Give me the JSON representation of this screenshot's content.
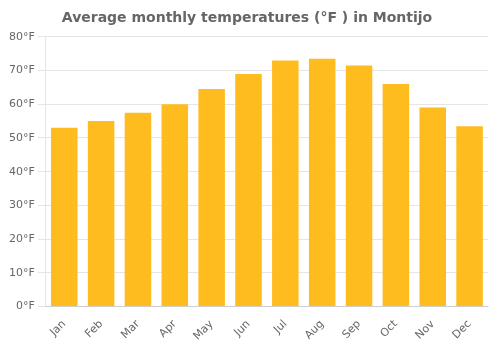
{
  "chart_data": {
    "type": "bar",
    "title": "Average monthly temperatures (°F ) in Montijo",
    "categories": [
      "Jan",
      "Feb",
      "Mar",
      "Apr",
      "May",
      "Jun",
      "Jul",
      "Aug",
      "Sep",
      "Oct",
      "Nov",
      "Dec"
    ],
    "values": [
      53,
      55,
      57.5,
      60,
      64.5,
      69,
      73,
      73.5,
      71.5,
      66,
      59,
      53.5
    ],
    "color": "#FFBC1F",
    "ylim": [
      0,
      80
    ],
    "yticks": [
      {
        "value": 0,
        "label": "0°F"
      },
      {
        "value": 10,
        "label": "10°F"
      },
      {
        "value": 20,
        "label": "20°F"
      },
      {
        "value": 30,
        "label": "30°F"
      },
      {
        "value": 40,
        "label": "40°F"
      },
      {
        "value": 50,
        "label": "50°F"
      },
      {
        "value": 60,
        "label": "60°F"
      },
      {
        "value": 70,
        "label": "70°F"
      },
      {
        "value": 80,
        "label": "80°F"
      }
    ],
    "grid": true
  }
}
